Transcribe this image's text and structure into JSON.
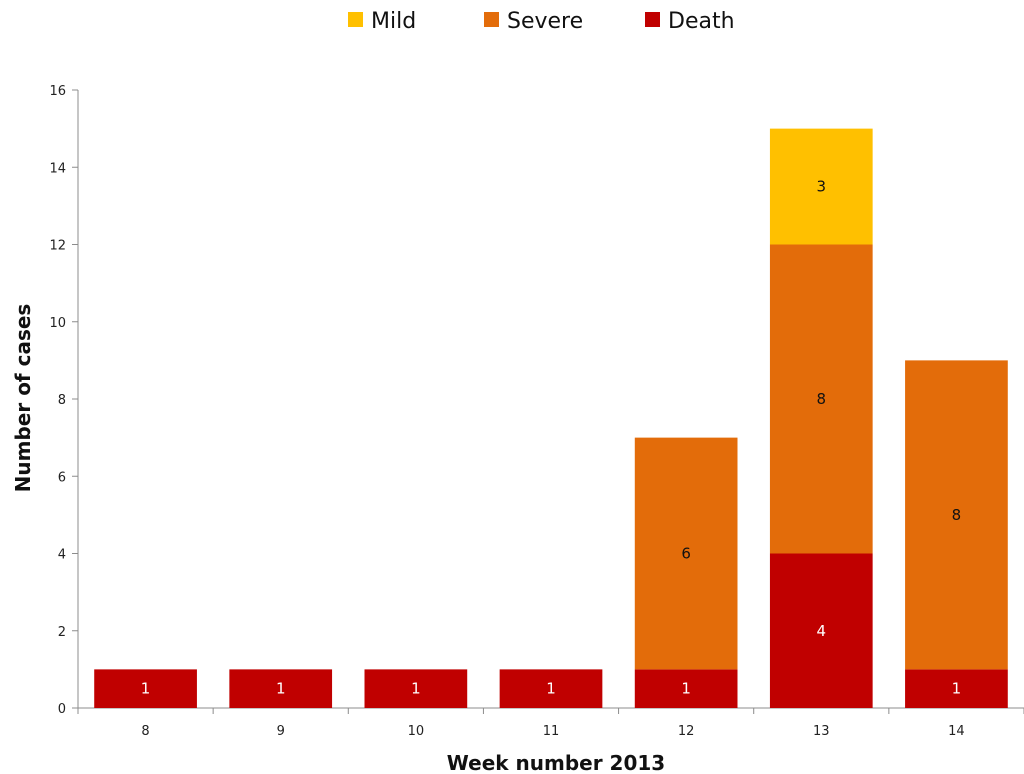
{
  "chart_data": {
    "type": "bar",
    "stacked": true,
    "categories": [
      "8",
      "9",
      "10",
      "11",
      "12",
      "13",
      "14"
    ],
    "series": [
      {
        "name": "Death",
        "values": [
          1,
          1,
          1,
          1,
          1,
          4,
          1
        ],
        "color": "#c00000",
        "label_color": "#ffffff"
      },
      {
        "name": "Severe",
        "values": [
          0,
          0,
          0,
          0,
          6,
          8,
          8
        ],
        "color": "#e36c0a",
        "label_color": "#111111"
      },
      {
        "name": "Mild",
        "values": [
          0,
          0,
          0,
          0,
          0,
          3,
          0
        ],
        "color": "#ffc000",
        "label_color": "#111111"
      }
    ],
    "legend_order": [
      "Mild",
      "Severe",
      "Death"
    ],
    "legend_position": "top",
    "xlabel": "Week number 2013",
    "ylabel": "Number of cases",
    "ylim": [
      0,
      16
    ],
    "yticks": [
      0,
      2,
      4,
      6,
      8,
      10,
      12,
      14,
      16
    ],
    "grid": false
  }
}
